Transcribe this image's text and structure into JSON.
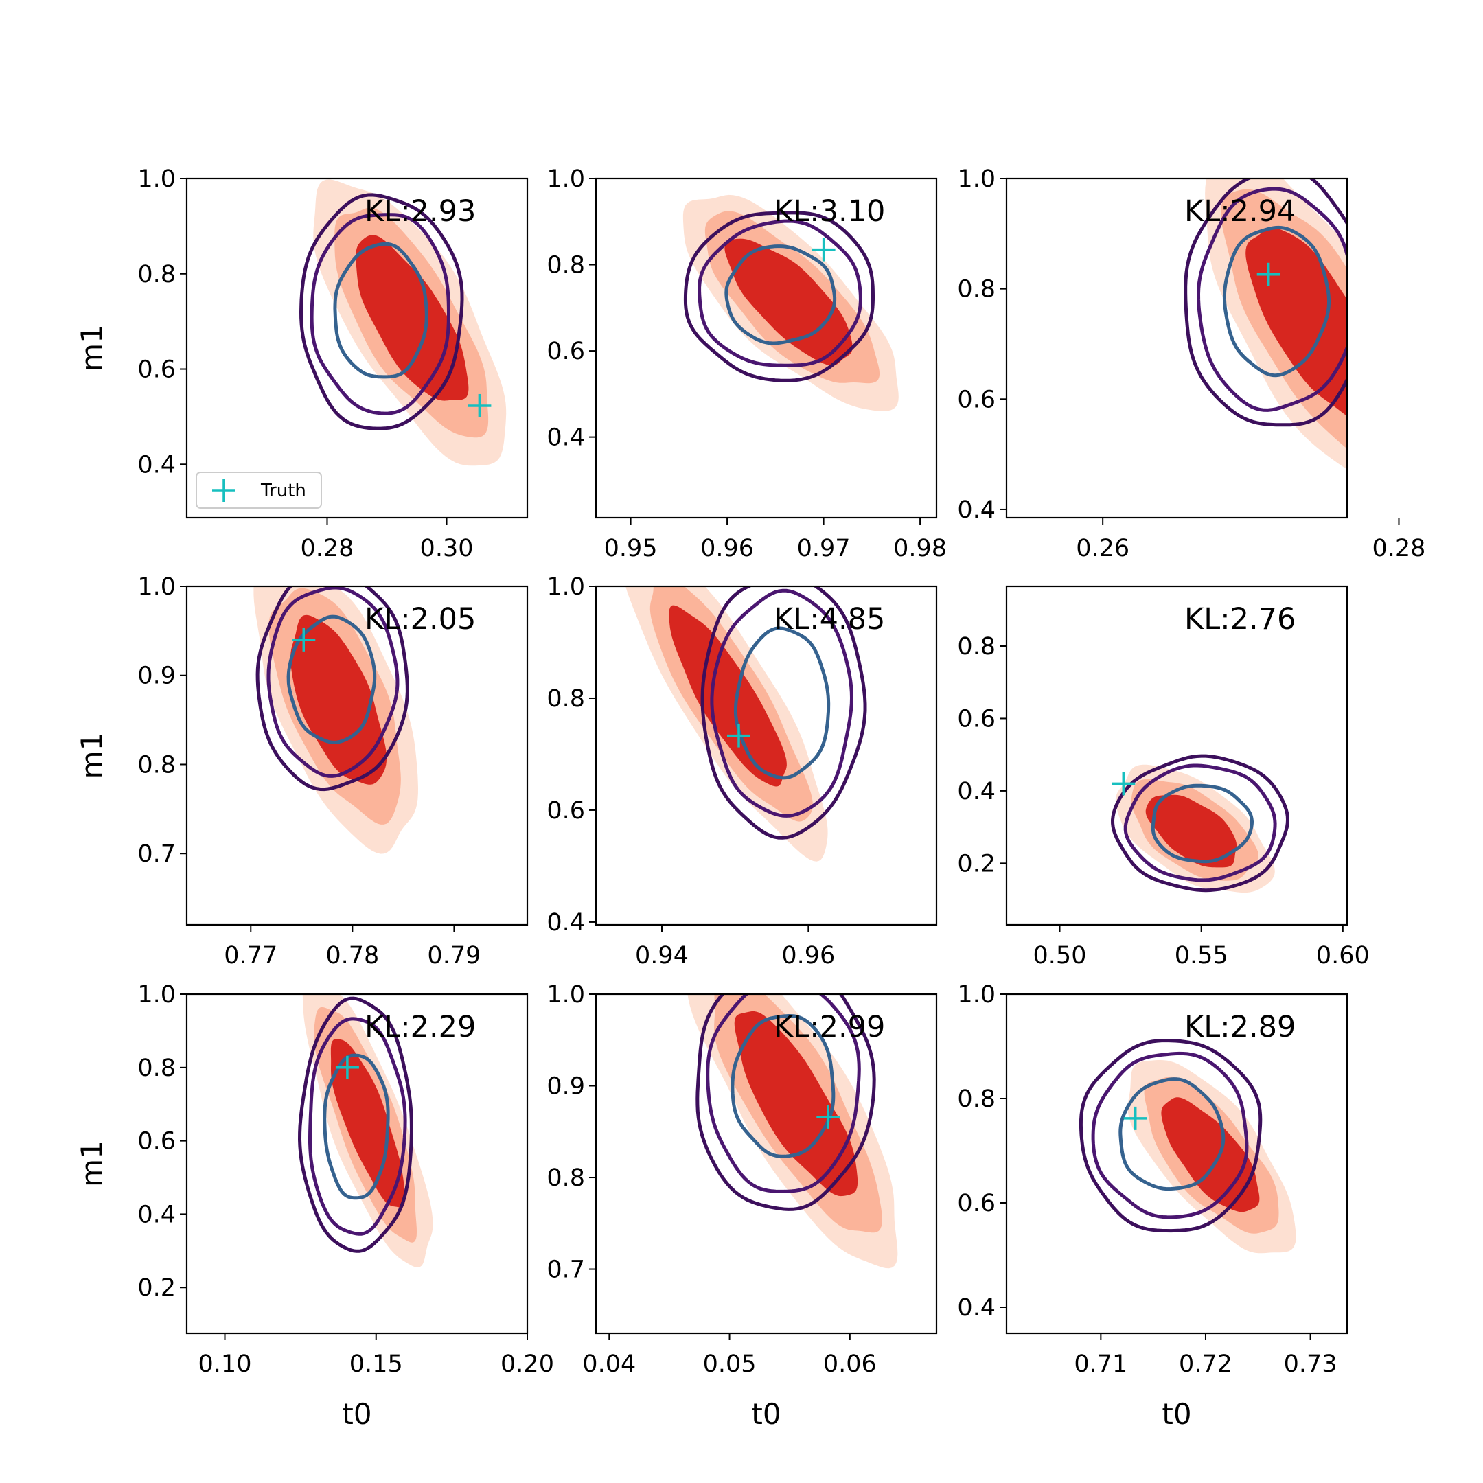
{
  "colors": {
    "fill_outer": "#fde0d2",
    "fill_mid": "#fbb49a",
    "fill_inner": "#d7261f",
    "contour_outer": "#3c0f5c",
    "contour_mid": "#4a1670",
    "contour_inner": "#35628f",
    "truth_marker": "#17bfbf"
  },
  "chart_data": [
    {
      "type": "contour",
      "panel": "row1-col1",
      "xlabel": "",
      "ylabel": "m1",
      "xlim": [
        0.2565,
        0.3135
      ],
      "ylim": [
        0.288,
        1.0
      ],
      "xticks": [
        "0.28",
        "0.30"
      ],
      "yticks": [
        "0.4",
        "0.6",
        "0.8",
        "1.0"
      ],
      "kl_label": "KL:2.93",
      "truth": {
        "t0": 0.3055,
        "m1": 0.523
      },
      "legend": {
        "label": "Truth",
        "position": "lower-left"
      },
      "filled": {
        "center": [
          0.294,
          0.7
        ],
        "sigma": [
          0.0065,
          0.12
        ],
        "rho": -0.72
      },
      "reference": {
        "center": [
          0.289,
          0.72
        ],
        "sigma": [
          0.0055,
          0.1
        ],
        "rho": 0.0
      }
    },
    {
      "type": "contour",
      "panel": "row1-col2",
      "xlabel": "",
      "ylabel": "",
      "xlim": [
        0.9464,
        0.9817
      ],
      "ylim": [
        0.213,
        1.0
      ],
      "xticks": [
        "0.95",
        "0.96",
        "0.97",
        "0.98"
      ],
      "yticks": [
        "0.4",
        "0.6",
        "0.8",
        "1.0"
      ],
      "kl_label": "KL:3.10",
      "truth": {
        "t0": 0.97,
        "m1": 0.835
      },
      "filled": {
        "center": [
          0.9665,
          0.715
        ],
        "sigma": [
          0.0045,
          0.1
        ],
        "rho": -0.75
      },
      "reference": {
        "center": [
          0.9655,
          0.73
        ],
        "sigma": [
          0.004,
          0.08
        ],
        "rho": 0.0
      }
    },
    {
      "type": "contour",
      "panel": "row1-col3",
      "xlabel": "",
      "ylabel": "",
      "xlim": [
        0.2535,
        0.2765
      ],
      "ylim": [
        0.385,
        1.0
      ],
      "xticks": [
        "0.26",
        "0.28"
      ],
      "yticks": [
        "0.4",
        "0.6",
        "0.8",
        "1.0"
      ],
      "kl_label": "KL:2.94",
      "truth": {
        "t0": 0.2712,
        "m1": 0.826
      },
      "filled": {
        "center": [
          0.2742,
          0.74
        ],
        "sigma": [
          0.003,
          0.12
        ],
        "rho": -0.7
      },
      "reference": {
        "center": [
          0.2717,
          0.78
        ],
        "sigma": [
          0.0025,
          0.095
        ],
        "rho": 0.0
      }
    },
    {
      "type": "contour",
      "panel": "row2-col1",
      "xlabel": "",
      "ylabel": "m1",
      "xlim": [
        0.7637,
        0.7972
      ],
      "ylim": [
        0.62,
        1.0
      ],
      "xticks": [
        "0.77",
        "0.78",
        "0.79"
      ],
      "yticks": [
        "0.7",
        "0.8",
        "0.9",
        "1.0"
      ],
      "kl_label": "KL:2.05",
      "truth": {
        "t0": 0.7752,
        "m1": 0.94
      },
      "filled": {
        "center": [
          0.7785,
          0.87
        ],
        "sigma": [
          0.0032,
          0.065
        ],
        "rho": -0.6
      },
      "reference": {
        "center": [
          0.778,
          0.895
        ],
        "sigma": [
          0.003,
          0.05
        ],
        "rho": 0.0
      }
    },
    {
      "type": "contour",
      "panel": "row2-col2",
      "xlabel": "",
      "ylabel": "",
      "xlim": [
        0.931,
        0.9775
      ],
      "ylim": [
        0.395,
        1.0
      ],
      "xticks": [
        "0.94",
        "0.96"
      ],
      "yticks": [
        "0.4",
        "0.6",
        "0.8",
        "1.0"
      ],
      "kl_label": "KL:4.85",
      "truth": {
        "t0": 0.9505,
        "m1": 0.733
      },
      "filled": {
        "center": [
          0.949,
          0.8
        ],
        "sigma": [
          0.0055,
          0.11
        ],
        "rho": -0.85
      },
      "reference": {
        "center": [
          0.9565,
          0.79
        ],
        "sigma": [
          0.0045,
          0.095
        ],
        "rho": 0.0
      }
    },
    {
      "type": "contour",
      "panel": "row2-col3",
      "xlabel": "",
      "ylabel": "",
      "xlim": [
        0.4812,
        0.6015
      ],
      "ylim": [
        0.03,
        0.965
      ],
      "xticks": [
        "0.50",
        "0.55",
        "0.60"
      ],
      "yticks": [
        "0.2",
        "0.4",
        "0.6",
        "0.8"
      ],
      "kl_label": "KL:2.76",
      "truth": {
        "t0": 0.5225,
        "m1": 0.42
      },
      "filled": {
        "center": [
          0.547,
          0.29
        ],
        "sigma": [
          0.011,
          0.07
        ],
        "rho": -0.55
      },
      "reference": {
        "center": [
          0.55,
          0.31
        ],
        "sigma": [
          0.0125,
          0.075
        ],
        "rho": 0.0
      }
    },
    {
      "type": "contour",
      "panel": "row3-col1",
      "xlabel": "t0",
      "ylabel": "m1",
      "xlim": [
        0.0874,
        0.2
      ],
      "ylim": [
        0.075,
        1.0
      ],
      "xticks": [
        "0.10",
        "0.15",
        "0.20"
      ],
      "yticks": [
        "0.2",
        "0.4",
        "0.6",
        "0.8",
        "1.0"
      ],
      "kl_label": "KL:2.29",
      "truth": {
        "t0": 0.1405,
        "m1": 0.8
      },
      "filled": {
        "center": [
          0.147,
          0.65
        ],
        "sigma": [
          0.0085,
          0.16
        ],
        "rho": -0.8
      },
      "reference": {
        "center": [
          0.1435,
          0.64
        ],
        "sigma": [
          0.0075,
          0.14
        ],
        "rho": 0.0
      }
    },
    {
      "type": "contour",
      "panel": "row3-col2",
      "xlabel": "t0",
      "ylabel": "",
      "xlim": [
        0.0389,
        0.0672
      ],
      "ylim": [
        0.63,
        1.0
      ],
      "xticks": [
        "0.04",
        "0.05",
        "0.06"
      ],
      "yticks": [
        "0.7",
        "0.8",
        "0.9",
        "1.0"
      ],
      "kl_label": "KL:2.99",
      "truth": {
        "t0": 0.0582,
        "m1": 0.866
      },
      "filled": {
        "center": [
          0.0555,
          0.88
        ],
        "sigma": [
          0.0035,
          0.07
        ],
        "rho": -0.8
      },
      "reference": {
        "center": [
          0.0545,
          0.9
        ],
        "sigma": [
          0.003,
          0.055
        ],
        "rho": 0.0
      }
    },
    {
      "type": "contour",
      "panel": "row3-col3",
      "xlabel": "t0",
      "ylabel": "",
      "xlim": [
        0.701,
        0.7335
      ],
      "ylim": [
        0.35,
        1.0
      ],
      "xticks": [
        "0.71",
        "0.72",
        "0.73"
      ],
      "yticks": [
        "0.4",
        "0.6",
        "0.8",
        "1.0"
      ],
      "kl_label": "KL:2.89",
      "truth": {
        "t0": 0.7133,
        "m1": 0.762
      },
      "filled": {
        "center": [
          0.7205,
          0.69
        ],
        "sigma": [
          0.0032,
          0.075
        ],
        "rho": -0.7
      },
      "reference": {
        "center": [
          0.7167,
          0.73
        ],
        "sigma": [
          0.0035,
          0.075
        ],
        "rho": 0.0
      }
    }
  ]
}
